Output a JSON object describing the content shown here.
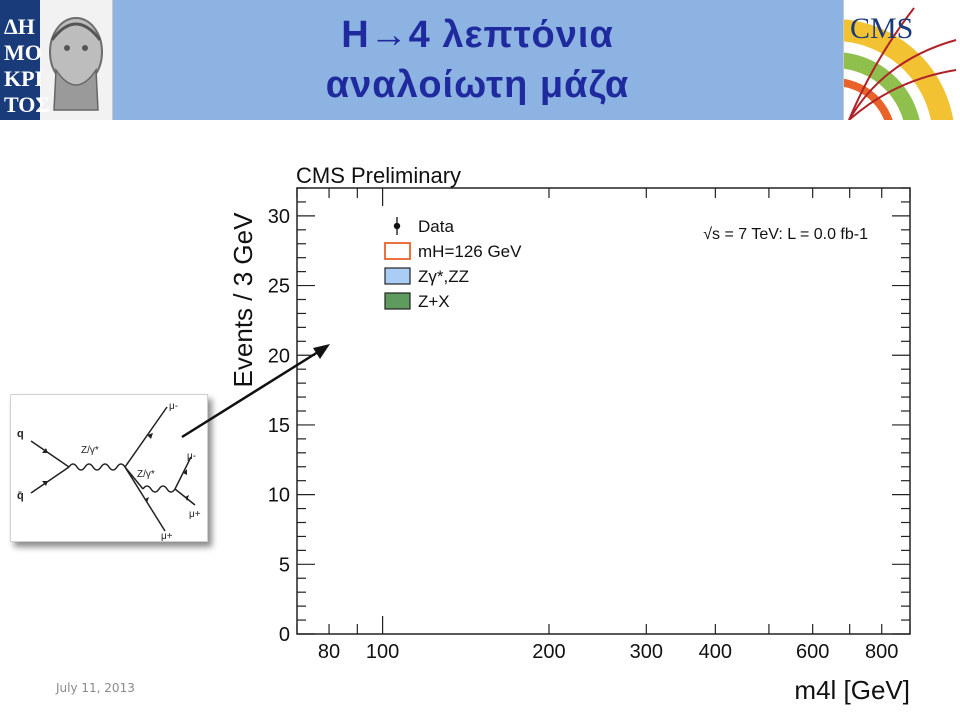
{
  "header": {
    "title_line1": "H→4 λεπτόνια",
    "title_line2": "αναλοίωτη μάζα",
    "background_color": "#8db3e2",
    "title_color": "#1f2a9e",
    "logo_left_text": "ΔΗΜΟΚΡΙΤΟΣ",
    "logo_right_text": "CMS"
  },
  "feynman": {
    "q_label": "q",
    "qbar_label": "q̄",
    "z1_label": "Z/γ*",
    "z2_label": "Z/γ*",
    "mu_minus_top": "μ-",
    "mu_minus_mid": "μ-",
    "mu_plus_mid": "μ+",
    "mu_plus_bottom": "μ+"
  },
  "footer": {
    "date": "July 11, 2013"
  },
  "chart_data": {
    "type": "line",
    "title": "CMS Preliminary",
    "xlabel": "m4l [GeV]",
    "ylabel": "Events / 3 GeV",
    "x_scale": "log",
    "xlim": [
      70,
      900
    ],
    "ylim": [
      0,
      32
    ],
    "x_ticks": [
      80,
      100,
      200,
      300,
      400,
      600,
      800
    ],
    "y_ticks": [
      0,
      5,
      10,
      15,
      20,
      25,
      30
    ],
    "annotation": "√s = 7 TeV: L = 0.0 fb-1",
    "legend_position": "top-left",
    "legend": [
      {
        "label": "Data",
        "style": "marker"
      },
      {
        "label": "mH=126 GeV",
        "style": "outline",
        "color": "#e8622a"
      },
      {
        "label": "Zγ*,ZZ",
        "style": "fill",
        "color": "#a9cdf5"
      },
      {
        "label": "Z+X",
        "style": "fill",
        "color": "#5f9a5f"
      }
    ],
    "series": []
  }
}
